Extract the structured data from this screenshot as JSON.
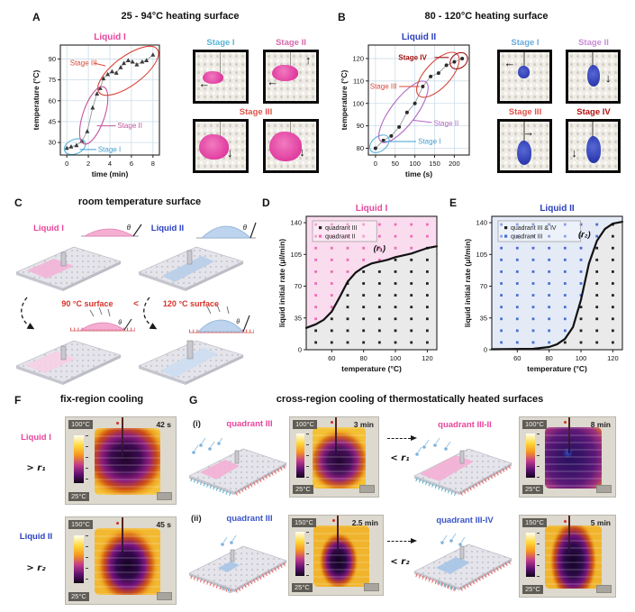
{
  "icons": {
    "arrow_left": "←",
    "arrow_right": "→",
    "arrow_up": "↑",
    "arrow_down": "↓"
  },
  "panelA": {
    "letter": "A",
    "title": "25 - 94°C heating surface",
    "photo_labels": {
      "s1": "Stage I",
      "s2": "Stage II",
      "s3": "Stage III"
    }
  },
  "panelB": {
    "letter": "B",
    "title": "80 - 120°C heating surface",
    "photo_labels": {
      "s1": "Stage I",
      "s2": "Stage II",
      "s3": "Stage III",
      "s4": "Stage IV"
    }
  },
  "panelC": {
    "letter": "C",
    "title": "room temperature surface",
    "liquid1": "Liquid I",
    "liquid2": "Liquid II",
    "theta": "θ",
    "surface_hot1": "90 °C surface",
    "lt": "<",
    "surface_hot2": "120 °C surface"
  },
  "panelD": {
    "letter": "D"
  },
  "panelE": {
    "letter": "E"
  },
  "panelF": {
    "letter": "F",
    "title": "fix-region cooling",
    "rows": [
      {
        "liquid": "Liquid I",
        "rate": "> r₁",
        "tmax": "100°C",
        "time": "42 s",
        "tmin": "25°C"
      },
      {
        "liquid": "Liquid II",
        "rate": "> r₂",
        "tmax": "150°C",
        "time": "45 s",
        "tmin": "25°C"
      }
    ]
  },
  "panelG": {
    "letter": "G",
    "title": "cross-region cooling of thermostatically heated surfaces",
    "rows": [
      {
        "idx": "(i)",
        "before": "quadrant III",
        "t1max": "100°C",
        "t1time": "3 min",
        "t1min": "25°C",
        "rate": "< r₁",
        "after": "quadrant III-II",
        "t2max": "100°C",
        "t2time": "8 min",
        "t2min": "25°C"
      },
      {
        "idx": "(ii)",
        "before": "quadrant III",
        "t1max": "150°C",
        "t1time": "2.5 min",
        "t1min": "25°C",
        "rate": "< r₂",
        "after": "quadrant III-IV",
        "t2max": "150°C",
        "t2time": "5 min",
        "t2min": "25°C"
      }
    ]
  },
  "chart_data": [
    {
      "id": "chartA",
      "type": "line",
      "title": "Liquid I",
      "title_color": "#e8459c",
      "xlabel": "time (min)",
      "ylabel": "temperature (°C)",
      "xlim": [
        -0.6,
        8.6
      ],
      "ylim": [
        21,
        100
      ],
      "xticks": [
        0,
        2,
        4,
        6,
        8
      ],
      "yticks": [
        30,
        45,
        60,
        75,
        90
      ],
      "marker": "triangle",
      "x": [
        0,
        0.4,
        0.9,
        1.4,
        1.9,
        2.4,
        2.8,
        3.1,
        3.4,
        3.8,
        4.2,
        4.6,
        5.0,
        5.3,
        5.7,
        6.1,
        6.5,
        7.0,
        7.4,
        8.0
      ],
      "y": [
        26,
        27,
        28,
        31,
        38,
        55,
        65,
        69,
        76,
        79,
        81,
        80,
        84,
        87,
        89,
        88,
        86,
        88,
        89,
        93
      ],
      "ellipses": [
        {
          "x1": -0.2,
          "y1": 24,
          "x2": 1.7,
          "y2": 30,
          "hw": 8,
          "color": "#5ab4d6"
        },
        {
          "x1": 1.6,
          "y1": 29,
          "x2": 3.4,
          "y2": 70,
          "hw": 12,
          "color": "#c4559b"
        },
        {
          "x1": 3.0,
          "y1": 66,
          "x2": 8.4,
          "y2": 97,
          "hw": 16,
          "color": "#d8473b"
        }
      ],
      "annotations": [
        {
          "text": "Stage III",
          "color": "#d8473b",
          "x": 0.3,
          "y": 87,
          "anchor": "start",
          "line": [
            2.55,
            87,
            3.6,
            85
          ]
        },
        {
          "text": "Stage II",
          "color": "#c4559b",
          "x": 4.7,
          "y": 42,
          "anchor": "start",
          "line": [
            4.55,
            42,
            2.8,
            42
          ]
        },
        {
          "text": "Stage I",
          "color": "#3f9fd0",
          "x": 2.9,
          "y": 25,
          "anchor": "start",
          "line": [
            2.75,
            25,
            1.2,
            25
          ]
        }
      ]
    },
    {
      "id": "chartB",
      "type": "line",
      "title": "Liquid II",
      "title_color": "#2a3fbe",
      "xlabel": "time (s)",
      "ylabel": "temperature (°C)",
      "xlim": [
        -18,
        238
      ],
      "ylim": [
        77,
        126
      ],
      "xticks": [
        0,
        50,
        100,
        150,
        200
      ],
      "yticks": [
        80,
        90,
        100,
        110,
        120
      ],
      "marker": "circle",
      "x": [
        0,
        20,
        40,
        60,
        80,
        100,
        120,
        140,
        160,
        180,
        200,
        220
      ],
      "y": [
        80,
        83.5,
        85.5,
        89.5,
        96,
        100,
        107.5,
        112,
        113.5,
        117,
        118.5,
        120
      ],
      "ellipses": [
        {
          "x1": -12,
          "y1": 79,
          "x2": 32,
          "y2": 85,
          "hw": 8,
          "color": "#5ab4d6"
        },
        {
          "x1": 14,
          "y1": 83,
          "x2": 128,
          "y2": 109.5,
          "hw": 14,
          "color": "#b269c2"
        },
        {
          "x1": 110,
          "y1": 103.5,
          "x2": 207,
          "y2": 122,
          "hw": 14,
          "color": "#d8473b"
        },
        {
          "x1": 192,
          "y1": 116.5,
          "x2": 231,
          "y2": 121.5,
          "hw": 8,
          "color": "#a01310"
        }
      ],
      "annotations": [
        {
          "text": "Stage IV",
          "color": "#a01310",
          "bold": true,
          "x": 58,
          "y": 120.5,
          "anchor": "start",
          "line": [
            150,
            120.5,
            186,
            120.5
          ]
        },
        {
          "text": "Stage III",
          "color": "#d8473b",
          "x": -14,
          "y": 107.5,
          "anchor": "start",
          "line": [
            60,
            107.5,
            112,
            107.5
          ]
        },
        {
          "text": "Stage II",
          "color": "#b269c2",
          "x": 148,
          "y": 91,
          "anchor": "start",
          "line": [
            143,
            91.5,
            96,
            92.5
          ]
        },
        {
          "text": "Stage I",
          "color": "#3f9fd0",
          "x": 108,
          "y": 83,
          "anchor": "start",
          "line": [
            103,
            83,
            22,
            83
          ]
        }
      ]
    },
    {
      "id": "chartD",
      "type": "scatter-region",
      "title": "Liquid I",
      "title_color": "#e8459c",
      "xlabel": "temperature (°C)",
      "ylabel": "liquid initial rate (μl/min)",
      "xlim": [
        44,
        126
      ],
      "ylim": [
        0,
        147
      ],
      "xticks": [
        60,
        80,
        100,
        120
      ],
      "yticks": [
        0,
        35,
        70,
        105,
        140
      ],
      "grid_x": [
        50,
        60,
        70,
        80,
        90,
        100,
        110,
        120
      ],
      "grid_y": [
        8,
        21,
        34,
        47,
        60,
        73,
        86,
        99,
        112,
        125,
        138
      ],
      "curve": [
        [
          44,
          24
        ],
        [
          50,
          28
        ],
        [
          55,
          33
        ],
        [
          60,
          42
        ],
        [
          65,
          58
        ],
        [
          70,
          75
        ],
        [
          75,
          85
        ],
        [
          80,
          91
        ],
        [
          85,
          95
        ],
        [
          90,
          97
        ],
        [
          95,
          99
        ],
        [
          100,
          102
        ],
        [
          105,
          104
        ],
        [
          110,
          106
        ],
        [
          115,
          109
        ],
        [
          120,
          112
        ],
        [
          126,
          114
        ]
      ],
      "curve_label": {
        "text": "(r₁)",
        "x": 90,
        "y": 109,
        "anchor": "middle"
      },
      "region_above_color": "#fadcef",
      "region_below_color": "#eaeaea",
      "marker_above_color": "#ee6cb4",
      "marker_below_color": "#222222",
      "legend": [
        {
          "label": "quadrant III",
          "color": "#222222"
        },
        {
          "label": "quadrant II",
          "color": "#ee6cb4"
        }
      ]
    },
    {
      "id": "chartE",
      "type": "scatter-region",
      "title": "Liquid II",
      "title_color": "#2a3fbe",
      "xlabel": "temperature (°C)",
      "ylabel": "liquid initial rate (μl/min)",
      "xlim": [
        44,
        126
      ],
      "ylim": [
        0,
        147
      ],
      "xticks": [
        60,
        80,
        100,
        120
      ],
      "yticks": [
        0,
        35,
        70,
        105,
        140
      ],
      "grid_x": [
        50,
        60,
        70,
        80,
        90,
        100,
        110,
        120
      ],
      "grid_y": [
        8,
        21,
        34,
        47,
        60,
        73,
        86,
        99,
        112,
        125,
        138
      ],
      "curve": [
        [
          44,
          0.5
        ],
        [
          70,
          1
        ],
        [
          80,
          3
        ],
        [
          85,
          6
        ],
        [
          90,
          12
        ],
        [
          95,
          25
        ],
        [
          100,
          55
        ],
        [
          105,
          95
        ],
        [
          110,
          120
        ],
        [
          115,
          133
        ],
        [
          120,
          139
        ],
        [
          126,
          141
        ]
      ],
      "curve_label": {
        "text": "(r₂)",
        "x": 106,
        "y": 124,
        "anchor": "end"
      },
      "region_above_color": "#e4ebf7",
      "region_below_color": "#eaeaea",
      "marker_above_color": "#4a6fd0",
      "marker_below_color": "#222222",
      "legend": [
        {
          "label": "quadrant III & IV",
          "color": "#222222"
        },
        {
          "label": "quadrant III",
          "color": "#4a6fd0"
        }
      ]
    }
  ]
}
